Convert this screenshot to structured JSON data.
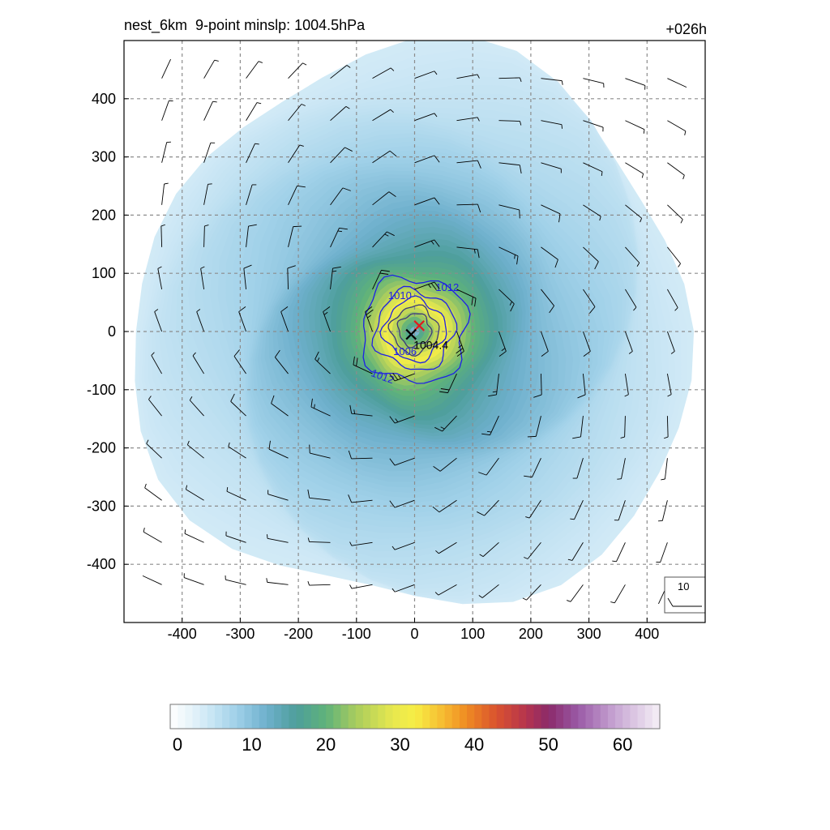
{
  "title_left": "nest_6km  9-point minslp: 1004.5hPa",
  "title_right": "+026h",
  "colors": {
    "contour": "#1f1fe6",
    "grid": "#8c8c8c",
    "center_observed": "#e31a1c",
    "center_model": "#000000",
    "barb": "#000000"
  },
  "chart_data": {
    "type": "heatmap",
    "description_fields": "filled wind-speed shading with SLP contours and wind barbs",
    "x": {
      "range": [
        -500,
        500
      ],
      "ticks": [
        -400,
        -300,
        -200,
        -100,
        0,
        100,
        200,
        300,
        400
      ]
    },
    "y": {
      "range": [
        -500,
        500
      ],
      "ticks": [
        400,
        300,
        200,
        100,
        0,
        -100,
        -200,
        -300,
        -400
      ]
    },
    "grid": true,
    "colorbar": {
      "range": [
        0,
        66
      ],
      "ticks": [
        0,
        10,
        20,
        30,
        40,
        50,
        60
      ],
      "stops": [
        {
          "v": 0,
          "c": "#ffffff"
        },
        {
          "v": 2,
          "c": "#eef7fb"
        },
        {
          "v": 5,
          "c": "#cfe9f6"
        },
        {
          "v": 9,
          "c": "#9fd0e8"
        },
        {
          "v": 13,
          "c": "#6eb0cc"
        },
        {
          "v": 17,
          "c": "#4e9e9b"
        },
        {
          "v": 21,
          "c": "#5fb27a"
        },
        {
          "v": 25,
          "c": "#a8cc5e"
        },
        {
          "v": 30,
          "c": "#e7e84e"
        },
        {
          "v": 33,
          "c": "#f7ee45"
        },
        {
          "v": 37,
          "c": "#f6b830"
        },
        {
          "v": 40,
          "c": "#ef8a22"
        },
        {
          "v": 44,
          "c": "#d9522f"
        },
        {
          "v": 48,
          "c": "#b5344e"
        },
        {
          "v": 51,
          "c": "#8b2a6a"
        },
        {
          "v": 55,
          "c": "#9a5aa6"
        },
        {
          "v": 60,
          "c": "#c7a6d3"
        },
        {
          "v": 66,
          "c": "#f6f0f7"
        }
      ]
    },
    "contours": [
      {
        "level": 1004,
        "radius_km": 28,
        "label": ""
      },
      {
        "level": 1006,
        "radius_km": 40,
        "label": "1006"
      },
      {
        "level": 1008,
        "radius_km": 52,
        "label": ""
      },
      {
        "level": 1010,
        "radius_km": 68,
        "label": "1010"
      },
      {
        "level": 1012,
        "radius_km": 92,
        "label": "1012"
      }
    ],
    "center_observed": {
      "x": 8,
      "y": 10
    },
    "center_model": {
      "x": -6,
      "y": -5,
      "label": "1004.4"
    },
    "wind_reference": {
      "value": 10,
      "label": "10"
    },
    "wind_profile": {
      "max_speed": 32,
      "radius_max_km": 55,
      "barb_spacing_km": 72.5
    }
  }
}
